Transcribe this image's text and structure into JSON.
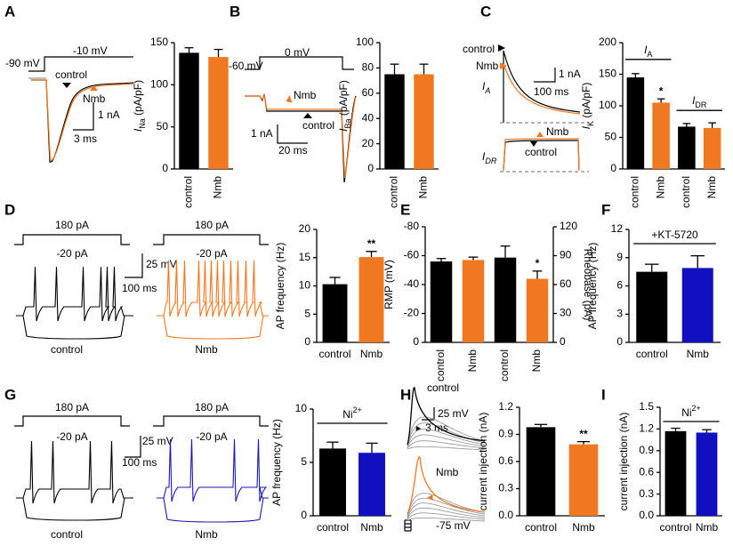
{
  "figure": {
    "panel_labels": [
      "A",
      "B",
      "C",
      "D",
      "E",
      "F",
      "G",
      "H",
      "I"
    ],
    "A": [
      "-90 mV",
      "-10 mV",
      "control",
      "Nmb",
      "1 nA",
      "3 ms"
    ],
    "B": [
      "-60 mV",
      "0 mV",
      "Nmb",
      "control",
      "1 nA",
      "20 ms"
    ],
    "C": [
      "control",
      "Nmb",
      "1 nA",
      "100 ms",
      {
        "text": "I",
        "sub": "A"
      },
      {
        "text": "I",
        "sub": "DR"
      },
      "Nmb",
      "control"
    ],
    "D": [
      "180 pA",
      "-20 pA",
      "180 pA",
      "-20 pA",
      "25 mV",
      "100 ms",
      "control",
      "Nmb"
    ],
    "G": [
      "180 pA",
      "-20 pA",
      "180 pA",
      "-20 pA",
      "25 mV",
      "100 ms",
      "control",
      "Nmb"
    ],
    "H": [
      "control",
      "25 mV",
      "3 ms",
      "Nmb",
      "-75 mV"
    ]
  },
  "chart_data": [
    {
      "type": "bar",
      "ylabel": {
        "text": "I",
        "sub": "Na",
        "rest": " (pA/pF)"
      },
      "categories": [
        "control",
        "Nmb"
      ],
      "values": [
        138,
        133
      ],
      "errors": [
        6,
        9
      ],
      "colors": [
        "#000000",
        "#f07820"
      ],
      "ylim": [
        0,
        150
      ],
      "yticks": [
        0,
        50,
        100,
        150
      ]
    },
    {
      "type": "bar",
      "ylabel": {
        "text": "I",
        "sub": "Ba",
        "rest": " (pA/pF)"
      },
      "categories": [
        "control",
        "Nmb"
      ],
      "values": [
        75,
        75
      ],
      "errors": [
        8,
        8
      ],
      "colors": [
        "#000000",
        "#f07820"
      ],
      "ylim": [
        0,
        100
      ],
      "yticks": [
        0,
        20,
        40,
        60,
        80,
        100
      ]
    },
    {
      "type": "bar",
      "ylabel": {
        "text": "I",
        "sub": "K",
        "rest": " (pA/pF)"
      },
      "categories": [
        "control",
        "Nmb",
        "control",
        "Nmb"
      ],
      "values": [
        145,
        105,
        67,
        65
      ],
      "errors": [
        6,
        6,
        5,
        8
      ],
      "colors": [
        "#000000",
        "#f07820",
        "#000000",
        "#f07820"
      ],
      "ylim": [
        0,
        200
      ],
      "yticks": [
        0,
        50,
        100,
        150,
        200
      ],
      "groups": [
        {
          "text": "I",
          "sub": "A"
        },
        {
          "text": "I",
          "sub": "DR"
        }
      ],
      "significance": [
        null,
        "*",
        null,
        null
      ]
    },
    {
      "type": "bar",
      "ylabel": {
        "text": "AP frequency (Hz)"
      },
      "categories": [
        "control",
        "Nmb"
      ],
      "values": [
        10.3,
        15.1
      ],
      "errors": [
        1.2,
        1.0
      ],
      "colors": [
        "#000000",
        "#f07820"
      ],
      "ylim": [
        0,
        20
      ],
      "yticks": [
        0,
        5,
        10,
        15,
        20
      ],
      "significance": [
        null,
        "**"
      ]
    },
    {
      "type": "bar",
      "ylabel": {
        "text": "RMP (mV)"
      },
      "y2label": {
        "text": "Rheobase (pA)"
      },
      "categories": [
        "control",
        "Nmb",
        "control",
        "Nmb"
      ],
      "series": [
        {
          "values": [
            -56,
            -57,
            null,
            null
          ],
          "errors": [
            2,
            2,
            null,
            null
          ]
        },
        {
          "values": [
            null,
            null,
            88,
            66
          ],
          "errors": [
            null,
            null,
            12,
            8
          ],
          "axis": "y2"
        }
      ],
      "colors": [
        "#000000",
        "#f07820",
        "#000000",
        "#f07820"
      ],
      "ylim": [
        0,
        -80
      ],
      "yticks": [
        0,
        -20,
        -40,
        -60,
        -80
      ],
      "y2lim": [
        0,
        120
      ],
      "y2ticks": [
        0,
        30,
        60,
        90,
        120
      ],
      "significance": [
        null,
        null,
        null,
        "*"
      ]
    },
    {
      "type": "bar",
      "ylabel": {
        "text": "AP frequency (Hz)"
      },
      "categories": [
        "control",
        "Nmb"
      ],
      "values": [
        7.5,
        7.9
      ],
      "errors": [
        0.8,
        1.3
      ],
      "colors": [
        "#000000",
        "#1010c0"
      ],
      "ylim": [
        0,
        12
      ],
      "yticks": [
        0,
        3,
        6,
        9,
        12
      ],
      "group_label": {
        "text": "+KT-5720"
      }
    },
    {
      "type": "bar",
      "ylabel": {
        "text": "AP frequency (Hz)"
      },
      "categories": [
        "control",
        "Nmb"
      ],
      "values": [
        6.3,
        5.9
      ],
      "errors": [
        0.6,
        0.9
      ],
      "colors": [
        "#000000",
        "#1010c0"
      ],
      "ylim": [
        0,
        10
      ],
      "yticks": [
        0,
        5,
        10
      ],
      "group_label": {
        "text": "Ni",
        "sup": "2+"
      }
    },
    {
      "type": "bar",
      "ylabel": {
        "text": "current injection (nA)"
      },
      "categories": [
        "control",
        "Nmb"
      ],
      "values": [
        0.98,
        0.79
      ],
      "errors": [
        0.03,
        0.03
      ],
      "colors": [
        "#000000",
        "#f07820"
      ],
      "ylim": [
        0,
        1.2
      ],
      "yticks": [
        {
          "value": 0,
          "label": "0.0"
        },
        0.3,
        0.6,
        0.9,
        1.2
      ],
      "significance": [
        null,
        "**"
      ]
    },
    {
      "type": "bar",
      "ylabel": {
        "text": "current injection (nA)"
      },
      "categories": [
        "control",
        "Nmb"
      ],
      "values": [
        1.17,
        1.15
      ],
      "errors": [
        0.04,
        0.04
      ],
      "colors": [
        "#000000",
        "#1010c0"
      ],
      "ylim": [
        0,
        1.5
      ],
      "yticks": [
        {
          "value": 0,
          "label": "0.0"
        },
        0.3,
        0.6,
        0.9,
        1.2,
        1.5
      ],
      "group_label": {
        "text": "Ni",
        "sup": "2+"
      }
    }
  ]
}
